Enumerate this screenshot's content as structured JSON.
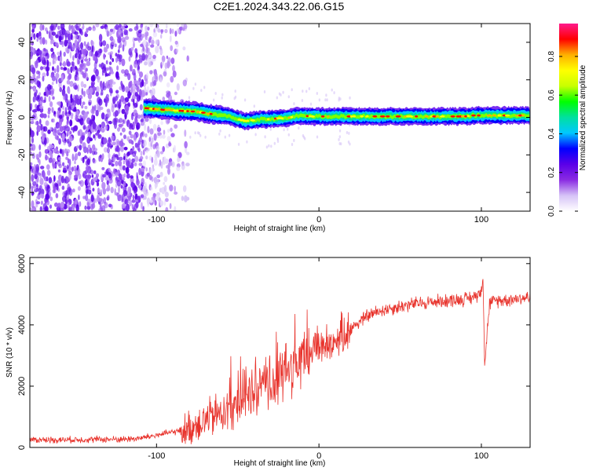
{
  "page_title": "C2E1.2024.343.22.06.G15",
  "chart_data": [
    {
      "type": "heatmap",
      "title": "C2E1.2024.343.22.06.G15",
      "xlabel": "Height of straight line (km)",
      "ylabel": "Frequency (Hz)",
      "xlim": [
        -178,
        130
      ],
      "ylim": [
        -50,
        50
      ],
      "x_ticks": [
        -100,
        0,
        100
      ],
      "y_ticks": [
        -40,
        -20,
        0,
        20,
        40
      ],
      "colorbar": {
        "label": "Normalized spectral amplitude",
        "range": [
          0,
          0.97
        ],
        "ticks": [
          0.0,
          0.2,
          0.4,
          0.6,
          0.8
        ],
        "colors": [
          "#ffffff",
          "#d6c3f7",
          "#8a2be2",
          "#5a00e8",
          "#0000ff",
          "#00c8ff",
          "#00e0a0",
          "#00ff00",
          "#c8ff00",
          "#ffff00",
          "#ffb000",
          "#ff0000",
          "#ff1a8c"
        ]
      },
      "noise_region_x": [
        -178,
        -80
      ],
      "signal_start_x": -108,
      "frequency_track": {
        "x": [
          -108,
          -95,
          -85,
          -75,
          -68,
          -60,
          -55,
          -50,
          -45,
          -40,
          -35,
          -30,
          -25,
          -20,
          -15,
          -10,
          -5,
          0,
          10,
          20,
          30,
          40,
          50,
          60,
          70,
          80,
          90,
          95,
          100,
          110,
          120,
          130
        ],
        "y": [
          5,
          4,
          3.5,
          3,
          2,
          1,
          0.5,
          -1,
          -2,
          -1.5,
          -1,
          -1,
          -0.5,
          -0.5,
          0.5,
          1,
          0.5,
          0.5,
          0.5,
          0.5,
          0.5,
          0.5,
          0.5,
          0.5,
          0.5,
          0.5,
          0.5,
          1,
          1,
          1,
          1,
          1
        ]
      }
    },
    {
      "type": "line",
      "xlabel": "Height of straight line (km)",
      "ylabel": "SNR (10 * v/v)",
      "xlim": [
        -178,
        130
      ],
      "ylim": [
        0,
        6200
      ],
      "x_ticks": [
        -100,
        0,
        100
      ],
      "y_ticks": [
        0,
        2000,
        4000,
        6000
      ],
      "color": "#e8332c",
      "series": [
        {
          "x": [
            -178,
            -160,
            -140,
            -120,
            -110,
            -100,
            -90,
            -85,
            -80,
            -75,
            -70,
            -65,
            -60,
            -55,
            -50,
            -45,
            -40,
            -35,
            -30,
            -25,
            -20,
            -15,
            -10,
            -5,
            -2,
            0,
            5,
            10,
            15,
            20,
            25,
            30,
            40,
            50,
            60,
            70,
            80,
            90,
            95,
            100,
            101,
            102,
            105,
            110,
            120,
            130
          ],
          "y": [
            250,
            250,
            260,
            270,
            300,
            400,
            500,
            550,
            600,
            800,
            900,
            1000,
            1150,
            1300,
            1500,
            1700,
            1750,
            1900,
            2100,
            2300,
            2500,
            2700,
            2800,
            3200,
            3400,
            3300,
            3400,
            3500,
            3700,
            3900,
            4100,
            4300,
            4500,
            4600,
            4700,
            4750,
            4800,
            4850,
            4900,
            5100,
            5600,
            2700,
            4700,
            4800,
            4850,
            4900
          ]
        }
      ]
    }
  ]
}
